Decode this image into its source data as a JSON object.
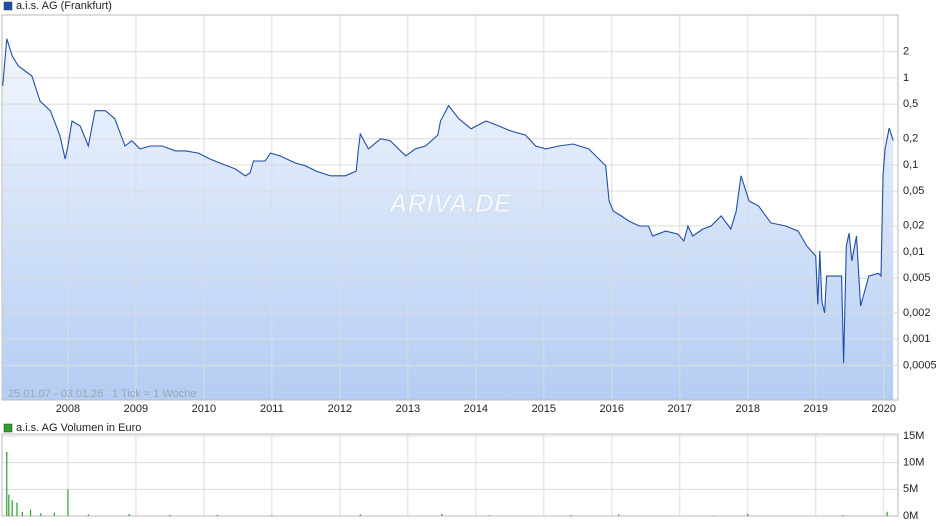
{
  "chart_data": [
    {
      "type": "line",
      "log": true,
      "grid": true,
      "fill": true,
      "annotations": [
        "25.01.07 - 03.01.26",
        "1 Tick = 1 Woche",
        "ARIVA.DE"
      ],
      "xlim": [
        2007.03,
        2020.21
      ],
      "xticks": [
        2008,
        2009,
        2010,
        2011,
        2012,
        2013,
        2014,
        2015,
        2016,
        2017,
        2018,
        2019,
        2020
      ],
      "ylim": [
        0.0002,
        5
      ],
      "yticks": [
        {
          "value": 0.0005,
          "label": "0,0005"
        },
        {
          "value": 0.001,
          "label": "0,001"
        },
        {
          "value": 0.002,
          "label": "0,002"
        },
        {
          "value": 0.005,
          "label": "0,005"
        },
        {
          "value": 0.01,
          "label": "0,01"
        },
        {
          "value": 0.02,
          "label": "0,02"
        },
        {
          "value": 0.05,
          "label": "0,05"
        },
        {
          "value": 0.1,
          "label": "0,1"
        },
        {
          "value": 0.2,
          "label": "0,2"
        },
        {
          "value": 0.5,
          "label": "0,5"
        },
        1,
        2
      ],
      "x": [
        2007.04,
        2007.1,
        2007.18,
        2007.27,
        2007.37,
        2007.47,
        2007.59,
        2007.74,
        2007.88,
        2007.96,
        2008.0,
        2008.06,
        2008.18,
        2008.3,
        2008.4,
        2008.55,
        2008.69,
        2008.84,
        2008.94,
        2009.06,
        2009.21,
        2009.39,
        2009.58,
        2009.73,
        2009.92,
        2010.09,
        2010.24,
        2010.46,
        2010.61,
        2010.68,
        2010.73,
        2010.9,
        2010.98,
        2011.12,
        2011.35,
        2011.49,
        2011.65,
        2011.86,
        2012.08,
        2012.24,
        2012.27,
        2012.3,
        2012.42,
        2012.6,
        2012.74,
        2012.97,
        2013.11,
        2013.26,
        2013.44,
        2013.48,
        2013.6,
        2013.75,
        2013.93,
        2014.15,
        2014.34,
        2014.51,
        2014.73,
        2014.88,
        2015.03,
        2015.22,
        2015.43,
        2015.66,
        2015.84,
        2015.91,
        2015.96,
        2016.02,
        2016.14,
        2016.25,
        2016.4,
        2016.54,
        2016.6,
        2016.79,
        2016.97,
        2017.06,
        2017.12,
        2017.19,
        2017.34,
        2017.46,
        2017.61,
        2017.75,
        2017.83,
        2017.9,
        2018.02,
        2018.16,
        2018.34,
        2018.56,
        2018.74,
        2018.87,
        2019.0,
        2019.03,
        2019.06,
        2019.09,
        2019.13,
        2019.16,
        2019.31,
        2019.38,
        2019.41,
        2019.45,
        2019.49,
        2019.53,
        2019.6,
        2019.66,
        2019.78,
        2019.92,
        2019.96,
        2019.99,
        2020.02,
        2020.08,
        2020.14
      ],
      "series": [
        {
          "name": "a.i.s. AG (Frankfurt)",
          "color": "#1f4fa8",
          "values": [
            0.81,
            2.81,
            1.79,
            1.37,
            1.2,
            1.05,
            0.54,
            0.42,
            0.22,
            0.117,
            0.165,
            0.32,
            0.28,
            0.165,
            0.42,
            0.42,
            0.34,
            0.165,
            0.19,
            0.153,
            0.165,
            0.165,
            0.145,
            0.145,
            0.137,
            0.117,
            0.105,
            0.09,
            0.075,
            0.081,
            0.111,
            0.111,
            0.137,
            0.127,
            0.105,
            0.098,
            0.085,
            0.075,
            0.075,
            0.085,
            0.145,
            0.227,
            0.153,
            0.2,
            0.19,
            0.127,
            0.153,
            0.165,
            0.22,
            0.32,
            0.48,
            0.34,
            0.26,
            0.32,
            0.28,
            0.246,
            0.22,
            0.165,
            0.153,
            0.165,
            0.174,
            0.153,
            0.111,
            0.098,
            0.0386,
            0.0296,
            0.026,
            0.0227,
            0.0199,
            0.0199,
            0.0153,
            0.0174,
            0.0161,
            0.0134,
            0.0199,
            0.0153,
            0.0184,
            0.0199,
            0.026,
            0.0184,
            0.0296,
            0.075,
            0.0386,
            0.0338,
            0.0216,
            0.0199,
            0.0174,
            0.0117,
            0.009,
            0.0025,
            0.0103,
            0.0027,
            0.002,
            0.0053,
            0.0053,
            0.0053,
            0.00053,
            0.0117,
            0.0165,
            0.0079,
            0.0153,
            0.0024,
            0.0053,
            0.0057,
            0.0053,
            0.075,
            0.153,
            0.266,
            0.19
          ]
        }
      ]
    },
    {
      "type": "bar",
      "grid": true,
      "xlim": [
        2007.03,
        2020.21
      ],
      "xticks": [
        2008,
        2009,
        2010,
        2011,
        2012,
        2013,
        2014,
        2015,
        2016,
        2017,
        2018,
        2019,
        2020
      ],
      "ylim": [
        0,
        15000000
      ],
      "yticks": [
        {
          "value": 0,
          "label": "0M"
        },
        {
          "value": 5000000,
          "label": "5M"
        },
        {
          "value": 10000000,
          "label": "10M"
        },
        {
          "value": 15000000,
          "label": "15M"
        }
      ],
      "x": [
        2007.1,
        2007.13,
        2007.18,
        2007.25,
        2007.33,
        2007.45,
        2007.6,
        2007.8,
        2008.0,
        2008.3,
        2008.9,
        2009.5,
        2010.2,
        2011.0,
        2012.3,
        2013.5,
        2014.2,
        2015.4,
        2016.1,
        2017.5,
        2018.0,
        2019.4,
        2020.05
      ],
      "series": [
        {
          "name": "a.i.s. AG Volumen in Euro",
          "color": "#2ca02c",
          "values": [
            12000000,
            4000000,
            3000000,
            2500000,
            800000,
            1200000,
            500000,
            600000,
            5000000,
            300000,
            400000,
            200000,
            200000,
            150000,
            300000,
            400000,
            150000,
            200000,
            300000,
            100000,
            400000,
            200000,
            800000
          ]
        }
      ]
    }
  ]
}
